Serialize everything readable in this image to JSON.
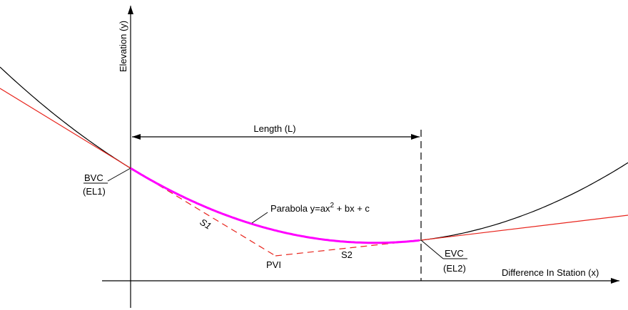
{
  "labels": {
    "y_axis": "Elevation (y)",
    "x_axis": "Difference In Station (x)",
    "length": "Length (L)",
    "bvc": "BVC",
    "el1": "(EL1)",
    "evc": "EVC",
    "el2": "(EL2)",
    "pvi": "PVI",
    "s1": "S1",
    "s2": "S2",
    "parabola_prefix": "Parabola y=ax",
    "parabola_exp": "2",
    "parabola_suffix": " + bx + c"
  },
  "colors": {
    "axis": "#000000",
    "full_parabola": "#000000",
    "tangent": "#e8241c",
    "curve": "#ff00ff",
    "background": "#ffffff"
  }
}
